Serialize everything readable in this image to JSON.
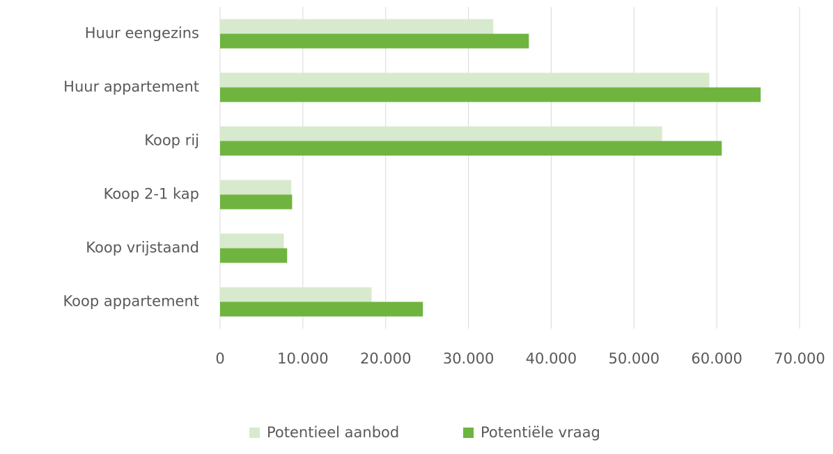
{
  "chart_data": {
    "type": "barh",
    "categories": [
      "Huur eengezins",
      "Huur appartement",
      "Koop rij",
      "Koop 2-1 kap",
      "Koop vrijstaand",
      "Koop appartement"
    ],
    "series": [
      {
        "name": "Potentieel aanbod",
        "color": "#d8eacd",
        "values": [
          33000,
          59100,
          53400,
          8600,
          7700,
          18300
        ]
      },
      {
        "name": "Potentiële vraag",
        "color": "#6fb43f",
        "values": [
          37300,
          65300,
          60600,
          8700,
          8100,
          24500
        ]
      }
    ],
    "xlim": [
      0,
      70000
    ],
    "xticks": [
      0,
      {
        "value": 10000,
        "label": "10.000"
      },
      {
        "value": 20000,
        "label": "20.000"
      },
      {
        "value": 30000,
        "label": "30.000"
      },
      {
        "value": 40000,
        "label": "40.000"
      },
      {
        "value": 50000,
        "label": "50.000"
      },
      {
        "value": 60000,
        "label": "60.000"
      },
      {
        "value": 70000,
        "label": "70.000"
      }
    ],
    "grid": true,
    "legend": "bottom"
  }
}
